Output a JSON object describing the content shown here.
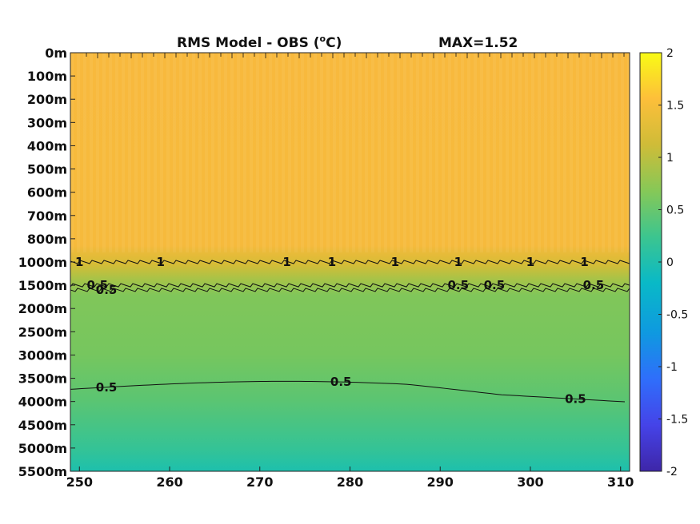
{
  "chart_data": {
    "type": "heatmap",
    "title": "RMS Model - OBS (",
    "title_unit": "o",
    "title_suffix": "C)",
    "max_label": "MAX=1.52",
    "xlabel": "",
    "ylabel": "",
    "x_ticks": [
      250,
      260,
      270,
      280,
      290,
      300,
      310
    ],
    "xlim": [
      249,
      311
    ],
    "y_tick_labels": [
      "0m",
      "100m",
      "200m",
      "300m",
      "400m",
      "500m",
      "600m",
      "700m",
      "800m",
      "1000m",
      "1500m",
      "2000m",
      "2500m",
      "3000m",
      "3500m",
      "4000m",
      "4500m",
      "5000m",
      "5500m"
    ],
    "colorbar": {
      "range": [
        -2,
        2
      ],
      "ticks": [
        2,
        1.5,
        1,
        0.5,
        0,
        -0.5,
        -1,
        -1.5,
        -2
      ],
      "colormap": "parula",
      "colors": [
        "#3e26a8",
        "#4543e8",
        "#2f6efb",
        "#0f99e0",
        "#09b9c7",
        "#3cc58f",
        "#86c857",
        "#cfbc38",
        "#fdbf3a",
        "#f9fb15"
      ]
    },
    "depth_profile": [
      {
        "depth": "0m",
        "value": 1.3
      },
      {
        "depth": "800m",
        "value": 1.3
      },
      {
        "depth": "1000m",
        "value": 1.0
      },
      {
        "depth": "1500m",
        "value": 0.5
      },
      {
        "depth": "2000m",
        "value": 0.62
      },
      {
        "depth": "3000m",
        "value": 0.58
      },
      {
        "depth": "3500m",
        "value": 0.5
      },
      {
        "depth": "4500m",
        "value": 0.38
      },
      {
        "depth": "5500m",
        "value": 0.15
      }
    ],
    "contours": [
      {
        "level": "1",
        "depth": "1000m",
        "labels_at_x": [
          250,
          259,
          273,
          278,
          285,
          292,
          300,
          306
        ]
      },
      {
        "level": "0.5",
        "depth": "1500m",
        "labels_at_x": [
          252,
          292,
          296,
          307
        ]
      },
      {
        "level": "0.5",
        "depth": "1600m",
        "labels_at_x": [
          253
        ]
      },
      {
        "level": "0.5",
        "depth": "3600m",
        "labels_at_x": [
          253,
          279,
          305
        ]
      }
    ]
  }
}
